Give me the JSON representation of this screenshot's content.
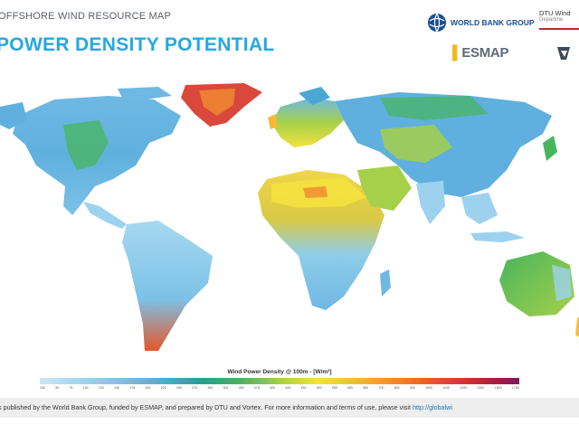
{
  "header": {
    "kicker": "OFFSHORE WIND RESOURCE MAP",
    "title": "POWER DENSITY POTENTIAL",
    "title_color": "#26a8e0"
  },
  "logos": {
    "world_bank": "WORLD BANK GROUP",
    "dtu_line1": "DTU Wind",
    "dtu_line2": "Departme",
    "esmap": "ESMAP"
  },
  "map": {
    "depicts": "world map of wind power density",
    "land_color_range": [
      "#c9e7f6",
      "#7d1a5a"
    ]
  },
  "legend": {
    "title": "Wind Power Density @ 100m - [W/m²]",
    "ticks": [
      "100",
      "50",
      "75",
      "100",
      "125",
      "150",
      "175",
      "200",
      "225",
      "250",
      "275",
      "300",
      "325",
      "350",
      "375",
      "400",
      "425",
      "450",
      "500",
      "550",
      "600",
      "650",
      "700",
      "800",
      "900",
      "1000",
      "1100",
      "1200",
      "1300",
      "1500",
      "1700"
    ]
  },
  "footer": {
    "text": "s published by the World Bank Group, funded by ESMAP, and prepared by DTU and Vortex. For more information and terms of use, please visit ",
    "link": "http://globalwi"
  }
}
